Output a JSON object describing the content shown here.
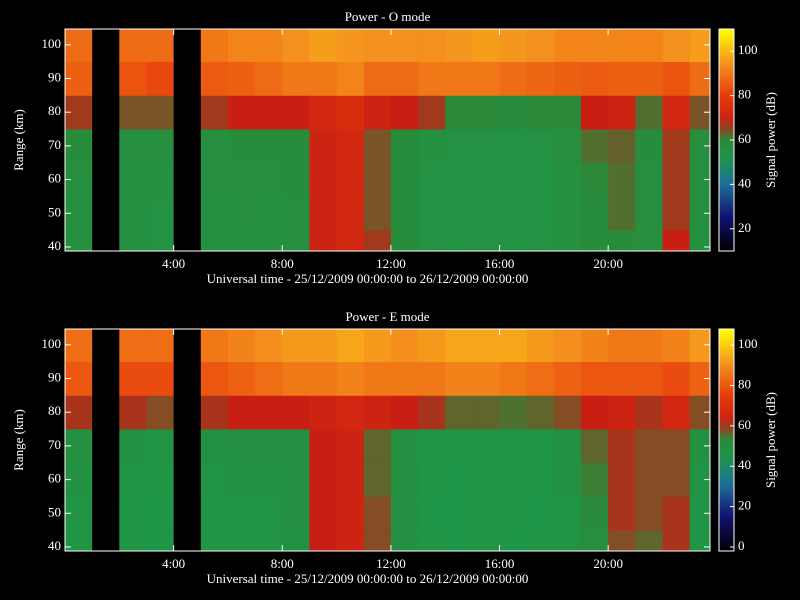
{
  "chart_data": [
    {
      "type": "heatmap",
      "title": "Power - O mode",
      "xlabel": "Universal time - 25/12/2009 00:00:00 to 26/12/2009 00:00:00",
      "ylabel": "Range (km)",
      "colorbar_label": "Signal power (dB)",
      "xlim": [
        0,
        23.75
      ],
      "xticks": [
        {
          "value": 4,
          "label": "4:00"
        },
        {
          "value": 8,
          "label": "8:00"
        },
        {
          "value": 12,
          "label": "12:00"
        },
        {
          "value": 16,
          "label": "16:00"
        },
        {
          "value": 20,
          "label": "20:00"
        }
      ],
      "ylim": [
        38.8,
        104.7
      ],
      "yticks": [
        40,
        50,
        60,
        70,
        80,
        90,
        100
      ],
      "clim": [
        10,
        110
      ],
      "cticks": [
        20,
        40,
        60,
        80,
        100
      ],
      "xbins": [
        0,
        1,
        2,
        3,
        4,
        5,
        6,
        7,
        8,
        9,
        10,
        11,
        12,
        13,
        14,
        15,
        16,
        17,
        18,
        19,
        20,
        21,
        22,
        23,
        24
      ],
      "ybins": [
        35,
        45,
        55,
        65,
        75,
        85,
        95,
        105
      ],
      "z": [
        [
          57,
          null,
          56,
          55,
          null,
          56,
          56,
          56,
          57,
          70,
          72,
          66,
          58,
          55,
          54,
          55,
          54,
          55,
          56,
          58,
          58,
          57,
          68,
          56
        ],
        [
          57,
          null,
          56,
          55,
          null,
          56,
          57,
          56,
          57,
          70,
          72,
          64,
          58,
          54,
          54,
          55,
          54,
          54,
          56,
          58,
          62,
          57,
          66,
          56
        ],
        [
          57,
          null,
          56,
          56,
          null,
          57,
          57,
          57,
          58,
          70,
          72,
          64,
          58,
          55,
          54,
          55,
          55,
          54,
          56,
          60,
          62,
          57,
          66,
          56
        ],
        [
          58,
          null,
          57,
          57,
          null,
          57,
          58,
          58,
          58,
          70,
          72,
          64,
          58,
          56,
          55,
          55,
          55,
          55,
          57,
          62,
          63,
          58,
          66,
          57
        ],
        [
          66,
          null,
          64,
          64,
          null,
          66,
          68,
          68,
          68,
          72,
          74,
          70,
          68,
          66,
          60,
          60,
          59,
          60,
          60,
          68,
          70,
          62,
          72,
          64
        ],
        [
          86,
          null,
          84,
          82,
          null,
          85,
          86,
          88,
          90,
          90,
          92,
          88,
          88,
          90,
          90,
          90,
          88,
          87,
          86,
          85,
          86,
          86,
          84,
          88
        ],
        [
          88,
          null,
          88,
          88,
          null,
          90,
          92,
          92,
          94,
          96,
          95,
          94,
          94,
          94,
          95,
          96,
          95,
          94,
          92,
          92,
          92,
          92,
          94,
          96
        ]
      ]
    },
    {
      "type": "heatmap",
      "title": "Power - E mode",
      "xlabel": "Universal time - 25/12/2009 00:00:00 to 26/12/2009 00:00:00",
      "ylabel": "Range (km)",
      "colorbar_label": "Signal power (dB)",
      "xlim": [
        0,
        23.75
      ],
      "xticks": [
        {
          "value": 4,
          "label": "4:00"
        },
        {
          "value": 8,
          "label": "8:00"
        },
        {
          "value": 12,
          "label": "12:00"
        },
        {
          "value": 16,
          "label": "16:00"
        },
        {
          "value": 20,
          "label": "20:00"
        }
      ],
      "ylim": [
        38.8,
        104.7
      ],
      "yticks": [
        40,
        50,
        60,
        70,
        80,
        90,
        100
      ],
      "clim": [
        -2,
        108
      ],
      "cticks": [
        0,
        20,
        40,
        60,
        80,
        100
      ],
      "xbins": [
        0,
        1,
        2,
        3,
        4,
        5,
        6,
        7,
        8,
        9,
        10,
        11,
        12,
        13,
        14,
        15,
        16,
        17,
        18,
        19,
        20,
        21,
        22,
        23,
        24
      ],
      "ybins": [
        35,
        45,
        55,
        65,
        75,
        85,
        95,
        105
      ],
      "z": [
        [
          46,
          null,
          45,
          44,
          null,
          45,
          46,
          46,
          47,
          62,
          64,
          58,
          48,
          45,
          44,
          45,
          44,
          45,
          46,
          50,
          58,
          56,
          60,
          46
        ],
        [
          46,
          null,
          45,
          44,
          null,
          45,
          46,
          46,
          48,
          62,
          64,
          58,
          48,
          44,
          44,
          45,
          45,
          44,
          46,
          52,
          60,
          58,
          60,
          46
        ],
        [
          47,
          null,
          46,
          45,
          null,
          46,
          47,
          47,
          48,
          62,
          64,
          56,
          48,
          45,
          44,
          45,
          45,
          45,
          47,
          54,
          60,
          58,
          58,
          46
        ],
        [
          48,
          null,
          47,
          46,
          null,
          47,
          48,
          48,
          48,
          62,
          64,
          56,
          48,
          46,
          45,
          45,
          45,
          45,
          47,
          56,
          60,
          58,
          58,
          47
        ],
        [
          60,
          null,
          60,
          58,
          null,
          60,
          62,
          62,
          62,
          64,
          66,
          64,
          62,
          60,
          56,
          56,
          55,
          56,
          58,
          62,
          64,
          60,
          66,
          58
        ],
        [
          80,
          null,
          78,
          78,
          null,
          80,
          82,
          84,
          86,
          86,
          88,
          86,
          86,
          86,
          88,
          88,
          86,
          84,
          82,
          80,
          80,
          80,
          78,
          82
        ],
        [
          84,
          null,
          84,
          84,
          null,
          86,
          88,
          90,
          92,
          92,
          94,
          92,
          90,
          92,
          94,
          94,
          94,
          92,
          90,
          88,
          86,
          86,
          88,
          92
        ]
      ]
    }
  ]
}
